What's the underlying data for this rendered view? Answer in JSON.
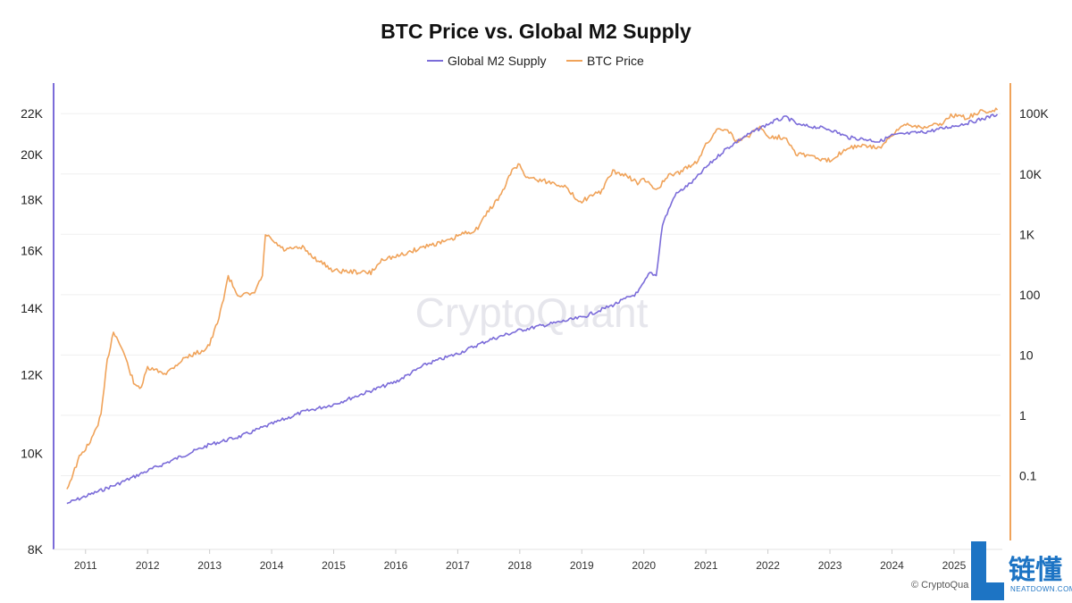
{
  "chart_data": {
    "type": "line",
    "title": "BTC Price vs. Global M2 Supply",
    "legend": [
      {
        "name": "Global M2 Supply",
        "color": "#7b6cd9"
      },
      {
        "name": "BTC Price",
        "color": "#f0a35a"
      }
    ],
    "x_ticks": [
      "2011",
      "2012",
      "2013",
      "2014",
      "2015",
      "2016",
      "2017",
      "2018",
      "2019",
      "2020",
      "2021",
      "2022",
      "2023",
      "2024",
      "2025"
    ],
    "x_range": [
      2010.6,
      2025.75
    ],
    "left_axis": {
      "scale": "log",
      "ylim": [
        8000,
        23500
      ],
      "ticks": [
        8000,
        10000,
        12000,
        14000,
        16000,
        18000,
        20000,
        22000
      ],
      "tick_labels": [
        "8K",
        "10K",
        "12K",
        "14K",
        "16K",
        "18K",
        "20K",
        "22K"
      ],
      "color": "#7b6cd9"
    },
    "right_axis": {
      "scale": "log",
      "ylim": [
        0.006,
        300000
      ],
      "ticks": [
        0.1,
        1,
        10,
        100,
        1000,
        10000,
        100000
      ],
      "tick_labels": [
        "0.1",
        "1",
        "10",
        "100",
        "1K",
        "10K",
        "100K"
      ],
      "color": "#f0a35a"
    },
    "series": [
      {
        "name": "Global M2 Supply",
        "axis": "left",
        "color": "#7b6cd9",
        "points": [
          [
            2010.7,
            8900
          ],
          [
            2011.0,
            9050
          ],
          [
            2011.5,
            9300
          ],
          [
            2012.0,
            9600
          ],
          [
            2012.5,
            9900
          ],
          [
            2013.0,
            10200
          ],
          [
            2013.5,
            10400
          ],
          [
            2014.0,
            10700
          ],
          [
            2014.5,
            11000
          ],
          [
            2015.0,
            11200
          ],
          [
            2015.5,
            11500
          ],
          [
            2016.0,
            11800
          ],
          [
            2016.5,
            12300
          ],
          [
            2017.0,
            12600
          ],
          [
            2017.5,
            13000
          ],
          [
            2018.0,
            13300
          ],
          [
            2018.5,
            13500
          ],
          [
            2019.0,
            13700
          ],
          [
            2019.5,
            14100
          ],
          [
            2019.9,
            14500
          ],
          [
            2020.1,
            15200
          ],
          [
            2020.2,
            15100
          ],
          [
            2020.3,
            17000
          ],
          [
            2020.5,
            18200
          ],
          [
            2020.8,
            18800
          ],
          [
            2021.0,
            19400
          ],
          [
            2021.3,
            20200
          ],
          [
            2021.6,
            20800
          ],
          [
            2021.9,
            21300
          ],
          [
            2022.1,
            21600
          ],
          [
            2022.3,
            21800
          ],
          [
            2022.5,
            21400
          ],
          [
            2022.8,
            21300
          ],
          [
            2023.0,
            21200
          ],
          [
            2023.3,
            20800
          ],
          [
            2023.6,
            20700
          ],
          [
            2023.8,
            20600
          ],
          [
            2024.0,
            20900
          ],
          [
            2024.3,
            21000
          ],
          [
            2024.6,
            21100
          ],
          [
            2024.9,
            21300
          ],
          [
            2025.2,
            21500
          ],
          [
            2025.5,
            21750
          ],
          [
            2025.7,
            21950
          ]
        ]
      },
      {
        "name": "BTC Price",
        "axis": "right",
        "color": "#f0a35a",
        "points": [
          [
            2010.7,
            0.06
          ],
          [
            2010.9,
            0.2
          ],
          [
            2011.1,
            0.4
          ],
          [
            2011.25,
            1.0
          ],
          [
            2011.35,
            8
          ],
          [
            2011.45,
            25
          ],
          [
            2011.6,
            12
          ],
          [
            2011.8,
            3
          ],
          [
            2011.9,
            3
          ],
          [
            2012.0,
            6
          ],
          [
            2012.3,
            5
          ],
          [
            2012.6,
            9
          ],
          [
            2012.9,
            12
          ],
          [
            2013.0,
            15
          ],
          [
            2013.15,
            40
          ],
          [
            2013.3,
            200
          ],
          [
            2013.45,
            100
          ],
          [
            2013.7,
            100
          ],
          [
            2013.85,
            200
          ],
          [
            2013.9,
            1000
          ],
          [
            2014.0,
            800
          ],
          [
            2014.2,
            550
          ],
          [
            2014.5,
            600
          ],
          [
            2014.7,
            400
          ],
          [
            2015.0,
            250
          ],
          [
            2015.3,
            240
          ],
          [
            2015.6,
            230
          ],
          [
            2015.8,
            400
          ],
          [
            2016.0,
            420
          ],
          [
            2016.5,
            650
          ],
          [
            2016.9,
            800
          ],
          [
            2017.0,
            950
          ],
          [
            2017.3,
            1200
          ],
          [
            2017.5,
            2500
          ],
          [
            2017.7,
            4500
          ],
          [
            2017.9,
            13000
          ],
          [
            2018.0,
            14000
          ],
          [
            2018.1,
            9000
          ],
          [
            2018.3,
            8000
          ],
          [
            2018.7,
            6500
          ],
          [
            2018.9,
            4000
          ],
          [
            2019.0,
            3600
          ],
          [
            2019.3,
            5000
          ],
          [
            2019.5,
            11000
          ],
          [
            2019.7,
            9500
          ],
          [
            2019.9,
            7200
          ],
          [
            2020.0,
            8000
          ],
          [
            2020.2,
            5500
          ],
          [
            2020.4,
            9200
          ],
          [
            2020.6,
            11000
          ],
          [
            2020.85,
            16000
          ],
          [
            2021.0,
            30000
          ],
          [
            2021.2,
            58000
          ],
          [
            2021.35,
            55000
          ],
          [
            2021.5,
            34000
          ],
          [
            2021.7,
            44000
          ],
          [
            2021.85,
            62000
          ],
          [
            2022.0,
            42000
          ],
          [
            2022.3,
            40000
          ],
          [
            2022.45,
            22000
          ],
          [
            2022.7,
            20000
          ],
          [
            2022.9,
            16500
          ],
          [
            2023.0,
            17000
          ],
          [
            2023.3,
            28000
          ],
          [
            2023.6,
            29000
          ],
          [
            2023.8,
            27000
          ],
          [
            2024.0,
            42000
          ],
          [
            2024.2,
            68000
          ],
          [
            2024.5,
            60000
          ],
          [
            2024.8,
            68000
          ],
          [
            2024.95,
            95000
          ],
          [
            2025.2,
            85000
          ],
          [
            2025.4,
            105000
          ],
          [
            2025.7,
            115000
          ]
        ]
      }
    ]
  },
  "watermark": "CryptoQuant",
  "copyright": "© CryptoQua",
  "logo": {
    "letter": "L",
    "chinese": "链懂",
    "english": "NEATDOWN.COM",
    "color": "#1d74c4"
  }
}
